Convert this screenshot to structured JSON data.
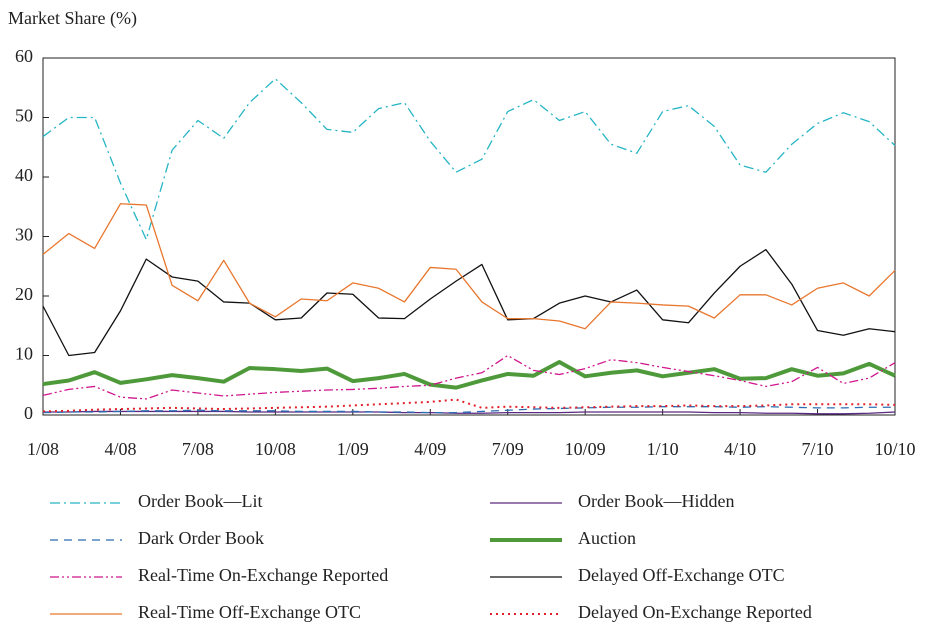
{
  "chart_data": {
    "type": "line",
    "ylabel": "Market Share (%)",
    "categories": [
      "1/08",
      null,
      null,
      "4/08",
      null,
      null,
      "7/08",
      null,
      null,
      "10/08",
      null,
      null,
      "1/09",
      null,
      null,
      "4/09",
      null,
      null,
      "7/09",
      null,
      null,
      "10/09",
      null,
      null,
      "1/10",
      null,
      null,
      "4/10",
      null,
      null,
      "7/10",
      null,
      null,
      "10/10"
    ],
    "ylim": [
      0,
      60
    ],
    "yticks": [
      0,
      10,
      20,
      30,
      40,
      50,
      60
    ],
    "series": [
      {
        "name": "Order Book—Lit",
        "color": "#26b5c4",
        "linestyle": "dashdot",
        "values": [
          46.8,
          50,
          50,
          39,
          29.5,
          44.5,
          49.5,
          46.5,
          52.5,
          56.5,
          52.5,
          48,
          47.5,
          51.5,
          52.5,
          46,
          40.8,
          43,
          51,
          53,
          49.5,
          51,
          45.5,
          44,
          51,
          52,
          48.5,
          42,
          40.8,
          45.5,
          49,
          50.8,
          49.3,
          45.3
        ]
      },
      {
        "name": "Order Book—Hidden",
        "color": "#5a2a82",
        "linestyle": "solid",
        "values": [
          0.5,
          0.5,
          0.6,
          0.6,
          0.6,
          0.6,
          0.6,
          0.6,
          0.5,
          0.5,
          0.5,
          0.5,
          0.5,
          0.5,
          0.4,
          0.4,
          0.3,
          0.3,
          0.4,
          0.4,
          0.4,
          0.5,
          0.5,
          0.5,
          0.5,
          0.5,
          0.4,
          0.4,
          0.3,
          0.3,
          0.2,
          0.2,
          0.3,
          0.5
        ]
      },
      {
        "name": "Dark Order Book",
        "color": "#2a6db5",
        "linestyle": "dashed",
        "values": [
          0.4,
          0.5,
          0.5,
          0.6,
          0.7,
          0.7,
          0.8,
          0.7,
          0.7,
          0.7,
          0.6,
          0.6,
          0.6,
          0.5,
          0.5,
          0.4,
          0.4,
          0.6,
          0.8,
          1,
          1.1,
          1.2,
          1.3,
          1.3,
          1.4,
          1.4,
          1.4,
          1.3,
          1.4,
          1.3,
          1.2,
          1.2,
          1.3,
          1.3
        ]
      },
      {
        "name": "Auction",
        "color": "#4e9a3a",
        "linestyle": "thick",
        "values": [
          5.2,
          5.8,
          7.2,
          5.4,
          6,
          6.7,
          6.2,
          5.6,
          7.9,
          7.7,
          7.4,
          7.8,
          5.7,
          6.2,
          6.9,
          5.1,
          4.6,
          5.8,
          6.9,
          6.6,
          8.9,
          6.5,
          7.1,
          7.5,
          6.5,
          7.1,
          7.7,
          6.1,
          6.2,
          7.7,
          6.6,
          7,
          8.6,
          6.6
        ]
      },
      {
        "name": "Real-Time On-Exchange Reported",
        "color": "#d0168c",
        "linestyle": "dashdotdot",
        "values": [
          3.3,
          4.3,
          4.8,
          3,
          2.7,
          4.2,
          3.7,
          3.2,
          3.5,
          3.8,
          4,
          4.2,
          4.3,
          4.5,
          4.8,
          5,
          6.2,
          7.1,
          10,
          7.5,
          6.8,
          7.8,
          9.3,
          8.8,
          8,
          7.3,
          6.6,
          5.8,
          4.8,
          5.6,
          8,
          5.3,
          6.2,
          8.8
        ]
      },
      {
        "name": "Delayed Off-Exchange OTC",
        "color": "#111111",
        "linestyle": "solid",
        "values": [
          18.3,
          10,
          10.5,
          17.5,
          26.2,
          23.2,
          22.5,
          19,
          18.8,
          16,
          16.3,
          20.5,
          20.3,
          16.3,
          16.2,
          19.5,
          22.5,
          25.3,
          16,
          16.2,
          18.8,
          20,
          19,
          21,
          16,
          15.5,
          20.5,
          25,
          27.8,
          22,
          14.2,
          13.4,
          14.5,
          14
        ]
      },
      {
        "name": "Real-Time Off-Exchange OTC",
        "color": "#e8772e",
        "linestyle": "solid",
        "values": [
          27,
          30.5,
          28,
          35.5,
          35.3,
          21.8,
          19.2,
          26,
          18.8,
          16.5,
          19.5,
          19.2,
          22.2,
          21.3,
          19,
          24.8,
          24.5,
          19,
          16.2,
          16.2,
          15.8,
          14.5,
          19,
          18.8,
          18.5,
          18.3,
          16.3,
          20.2,
          20.2,
          18.5,
          21.3,
          22.2,
          20,
          24.3
        ]
      },
      {
        "name": "Delayed On-Exchange Reported",
        "color": "#e0202a",
        "linestyle": "dotted",
        "values": [
          0.6,
          0.7,
          0.9,
          1,
          1.1,
          1.2,
          1.1,
          1,
          1.1,
          1.2,
          1.3,
          1.4,
          1.6,
          1.8,
          2,
          2.2,
          2.6,
          1.2,
          1.4,
          1.3,
          1.2,
          1.3,
          1.4,
          1.5,
          1.5,
          1.6,
          1.5,
          1.5,
          1.6,
          1.8,
          1.8,
          1.8,
          1.8,
          1.7
        ]
      }
    ]
  }
}
